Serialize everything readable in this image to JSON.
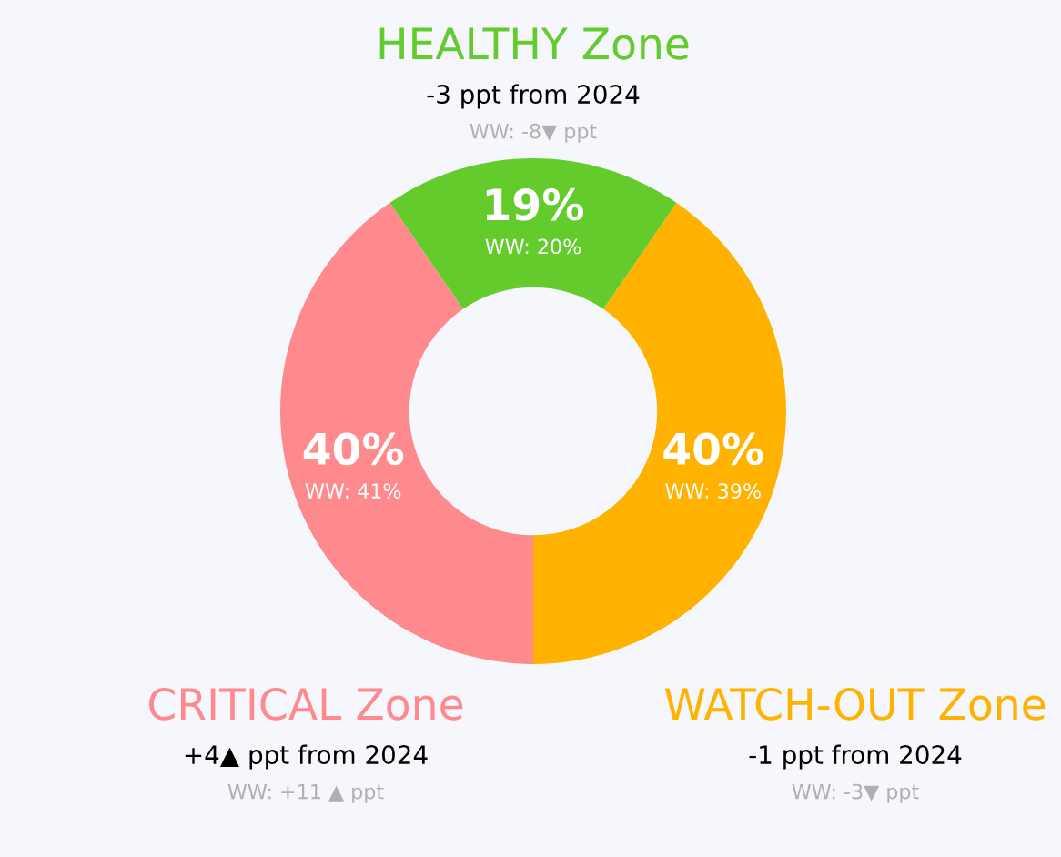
{
  "chart_data": {
    "type": "donut",
    "categories": [
      "HEALTHY Zone",
      "WATCH-OUT Zone",
      "CRITICAL Zone"
    ],
    "values": [
      19,
      40,
      40
    ],
    "colors": [
      "#63cc2c",
      "#ffb300",
      "#ff8a8e"
    ],
    "value_labels": [
      "19%",
      "40%",
      "40%"
    ],
    "annotations": [
      "WW: 20%",
      "WW: 39%",
      "WW: 41%",
      "-3 ppt from 2024",
      "WW: -8▼ ppt",
      "-1 ppt from 2024",
      "WW: -3▼ ppt",
      "+4▲ ppt from 2024",
      "WW: +11 ▲ ppt"
    ],
    "legend": false
  }
}
